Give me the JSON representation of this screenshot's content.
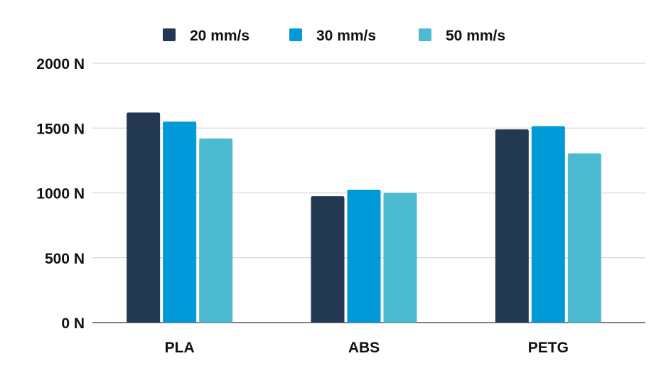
{
  "chart_data": {
    "type": "bar",
    "title": "",
    "xlabel": "",
    "ylabel": "",
    "categories": [
      "PLA",
      "ABS",
      "PETG"
    ],
    "series": [
      {
        "name": "20 mm/s",
        "color": "#233851",
        "values": [
          1620,
          975,
          1490
        ]
      },
      {
        "name": "30 mm/s",
        "color": "#0299d8",
        "values": [
          1550,
          1025,
          1515
        ]
      },
      {
        "name": "50 mm/s",
        "color": "#4cbbd1",
        "values": [
          1420,
          1000,
          1305
        ]
      }
    ],
    "ylim": [
      0,
      2000
    ],
    "y_ticks": [
      0,
      500,
      1000,
      1500,
      2000
    ],
    "y_tick_labels": [
      "0 N",
      "500 N",
      "1000 N",
      "1500 N",
      "2000 N"
    ],
    "grid": true,
    "legend_position": "top-center"
  }
}
